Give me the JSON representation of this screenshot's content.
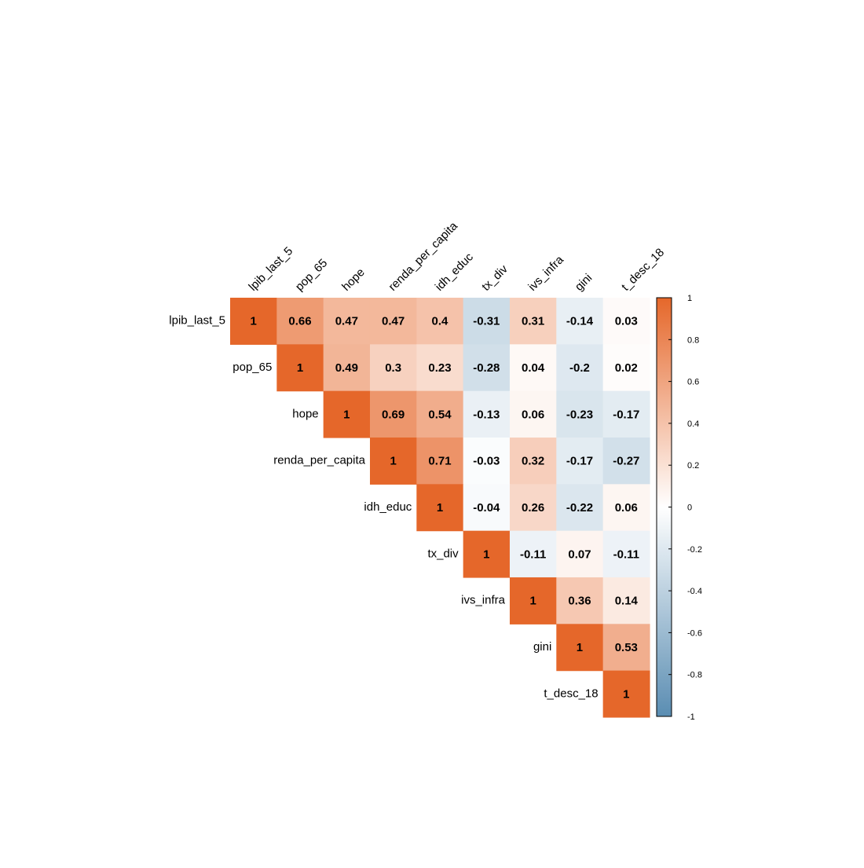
{
  "chart_data": {
    "type": "heatmap",
    "variables": [
      "lpib_last_5",
      "pop_65",
      "hope",
      "renda_per_capita",
      "idh_educ",
      "tx_div",
      "ivs_infra",
      "gini",
      "t_desc_18"
    ],
    "matrix": [
      [
        1,
        0.66,
        0.47,
        0.47,
        0.4,
        -0.31,
        0.31,
        -0.14,
        0.03
      ],
      [
        null,
        1,
        0.49,
        0.3,
        0.23,
        -0.28,
        0.04,
        -0.2,
        0.02
      ],
      [
        null,
        null,
        1,
        0.69,
        0.54,
        -0.13,
        0.06,
        -0.23,
        -0.17
      ],
      [
        null,
        null,
        null,
        1,
        0.71,
        -0.03,
        0.32,
        -0.17,
        -0.27
      ],
      [
        null,
        null,
        null,
        null,
        1,
        -0.04,
        0.26,
        -0.22,
        0.06
      ],
      [
        null,
        null,
        null,
        null,
        null,
        1,
        -0.11,
        0.07,
        -0.11
      ],
      [
        null,
        null,
        null,
        null,
        null,
        null,
        1,
        0.36,
        0.14
      ],
      [
        null,
        null,
        null,
        null,
        null,
        null,
        null,
        1,
        0.53
      ],
      [
        null,
        null,
        null,
        null,
        null,
        null,
        null,
        null,
        1
      ]
    ],
    "colorbar": {
      "range": [
        -1,
        1
      ],
      "ticks": [
        "1",
        "0.8",
        "0.6",
        "0.4",
        "0.2",
        "0",
        "-0.2",
        "-0.4",
        "-0.6",
        "-0.8",
        "-1"
      ],
      "colors": {
        "negative": "#5a8db2",
        "zero": "#ffffff",
        "positive": "#e5672a"
      }
    },
    "layout": "upper-triangle",
    "title": "",
    "xlabel": "",
    "ylabel": ""
  }
}
